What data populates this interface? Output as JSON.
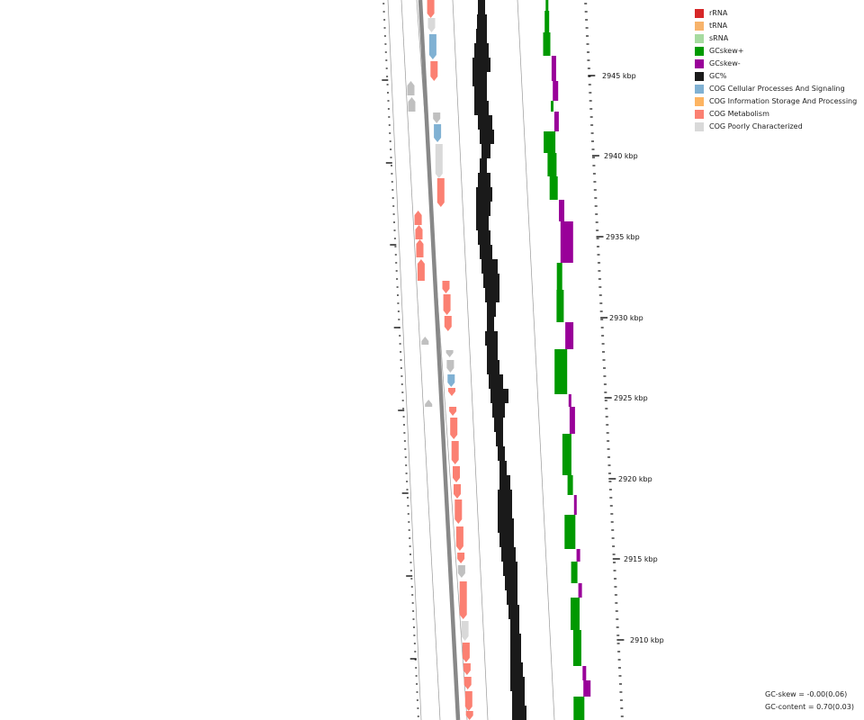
{
  "legend": [
    {
      "label": "rRNA",
      "color": "#d62728"
    },
    {
      "label": "tRNA",
      "color": "#f7b36b"
    },
    {
      "label": "sRNA",
      "color": "#a6dba0"
    },
    {
      "label": "GCskew+",
      "color": "#009900"
    },
    {
      "label": "GCskew-",
      "color": "#990099"
    },
    {
      "label": "GC%",
      "color": "#1a1a1a"
    },
    {
      "label": "COG Cellular Processes And Signaling",
      "color": "#80b1d3"
    },
    {
      "label": "COG Information Storage And Processing",
      "color": "#fdb462"
    },
    {
      "label": "COG Metabolism",
      "color": "#fb8072"
    },
    {
      "label": "COG Poorly Characterized",
      "color": "#d9d9d9"
    }
  ],
  "ruler_labels": [
    "2945 kbp",
    "2940 kbp",
    "2935 kbp",
    "2930 kbp",
    "2925 kbp",
    "2920 kbp",
    "2915 kbp",
    "2910 kbp"
  ],
  "stats": {
    "gc_skew": "GC-skew = -0.00(0.06)",
    "gc_content": "GC-content = 0.70(0.03)"
  },
  "colors": {
    "backbone": "#888888",
    "track_line": "#999999",
    "gc_content": "#1a1a1a",
    "skew_pos": "#009900",
    "skew_neg": "#990099",
    "metabolism": "#fb8072",
    "cellular": "#80b1d3",
    "poorly": "#d9d9d9",
    "unassigned": "#c0c0c0"
  }
}
